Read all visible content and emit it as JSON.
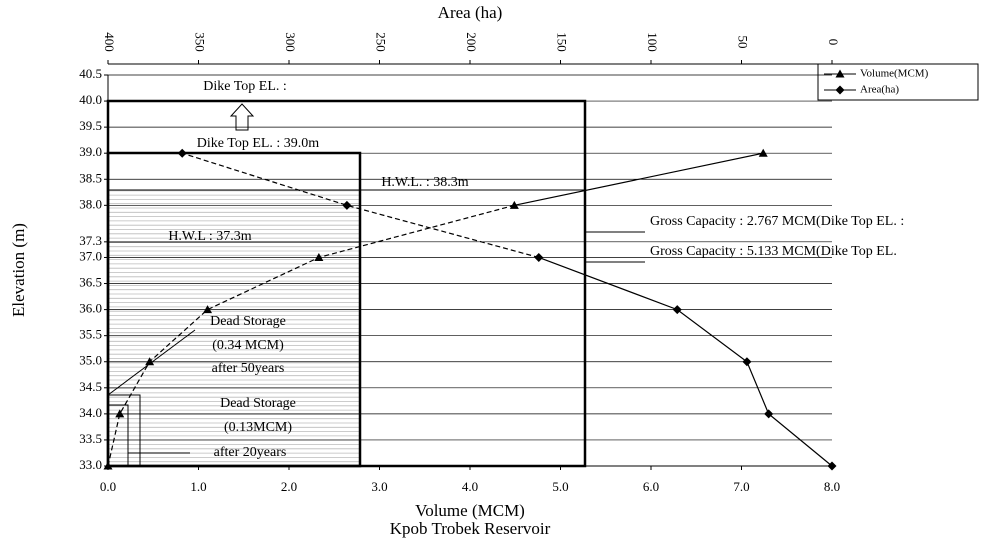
{
  "chart_data": {
    "type": "line",
    "title": "Kpob Trobek Reservoir",
    "x_label": "Volume (MCM)",
    "x2_label": "Area (ha)",
    "y_label": "Elevation (m)",
    "xlim": [
      0,
      8
    ],
    "xticks": [
      {
        "value": 0,
        "label": "0.0"
      },
      {
        "value": 1,
        "label": "1.0"
      },
      {
        "value": 2,
        "label": "2.0"
      },
      {
        "value": 3,
        "label": "3.0"
      },
      {
        "value": 4,
        "label": "4.0"
      },
      {
        "value": 5,
        "label": "5.0"
      },
      {
        "value": 6,
        "label": "6.0"
      },
      {
        "value": 7,
        "label": "7.0"
      },
      {
        "value": 8,
        "label": "8.0"
      }
    ],
    "x2lim": [
      400,
      0
    ],
    "x2ticks": [
      400,
      350,
      300,
      250,
      200,
      150,
      100,
      50,
      0
    ],
    "ylim": [
      33,
      40.5
    ],
    "yticks": [
      {
        "value": 33,
        "label": "33.0"
      },
      33.5,
      {
        "value": 34,
        "label": "34.0"
      },
      34.5,
      {
        "value": 35,
        "label": "35.0"
      },
      35.5,
      {
        "value": 36,
        "label": "36.0"
      },
      36.5,
      {
        "value": 37,
        "label": "37.0"
      },
      37.3,
      {
        "value": 38,
        "label": "38.0"
      },
      38.5,
      {
        "value": 39,
        "label": "39.0"
      },
      39.5,
      {
        "value": 40,
        "label": "40.0"
      },
      40.5
    ],
    "grid": true,
    "legend": "upper right",
    "series": [
      {
        "name": "Volume(MCM)",
        "color": "#000000",
        "marker": "triangle",
        "axis": "x",
        "x": [
          0,
          0.13,
          0.46,
          1.1,
          2.33,
          4.49,
          7.24
        ],
        "values": [
          33,
          34,
          35,
          36,
          37,
          38,
          39
        ]
      },
      {
        "name": "Area(ha)",
        "color": "#000000",
        "marker": "diamond",
        "axis": "x2",
        "x": [
          0,
          35,
          47,
          85.5,
          162,
          268,
          359
        ],
        "values": [
          33,
          34,
          35,
          36,
          37,
          38,
          39
        ]
      }
    ],
    "annotations": [
      "Dike Top EL. :",
      "Dike Top EL. : 39.0m",
      "H.W.L. : 38.3m",
      "H.W.L : 37.3m",
      "Gross Capacity : 2.767 MCM(Dike Top EL.  :",
      "Gross Capacity : 5.133 MCM(Dike Top EL.",
      "Dead Storage",
      "(0.34 MCM)",
      "after 50years",
      "Dead Storage",
      "(0.13MCM)",
      "after 20years"
    ]
  }
}
